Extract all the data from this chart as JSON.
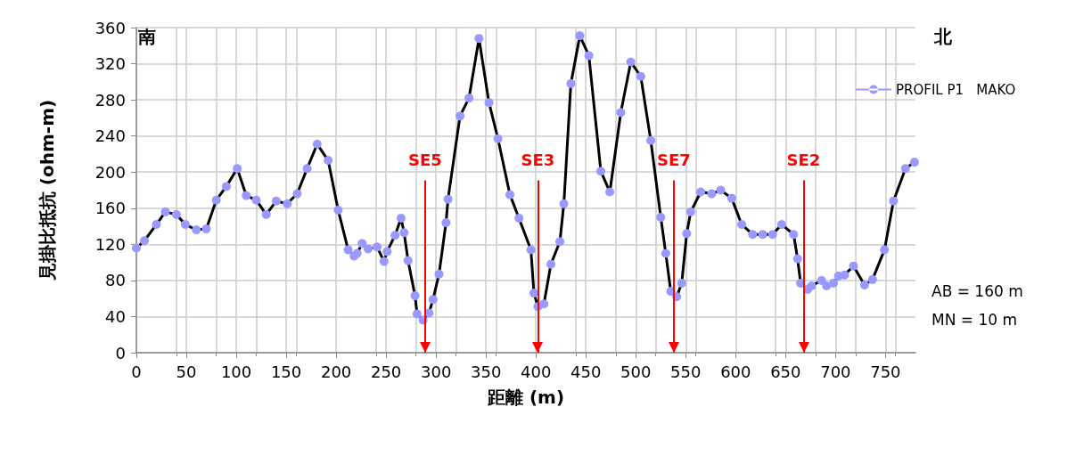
{
  "chart_data": {
    "type": "line",
    "xlabel": "距離 (m)",
    "ylabel": "見掛比抵抗 (ohm-m)",
    "xlim": [
      0,
      780
    ],
    "xticks": [
      0,
      50,
      100,
      150,
      200,
      250,
      300,
      350,
      400,
      450,
      500,
      550,
      600,
      650,
      700,
      750
    ],
    "ylim": [
      0,
      360
    ],
    "yticks": [
      0,
      40,
      80,
      120,
      160,
      200,
      240,
      280,
      320,
      360
    ],
    "grid": true,
    "legend": "top right",
    "marker": "circle",
    "line_style": "solid",
    "series": [
      {
        "name": "PROFIL P1   MAKO",
        "color": "#9999ff",
        "x": [
          0,
          8,
          20,
          29,
          40,
          49,
          60,
          70,
          80,
          90,
          101,
          110,
          120,
          130,
          140,
          151,
          161,
          171,
          181,
          192,
          202,
          212,
          218,
          221,
          226,
          232,
          241,
          248,
          251,
          259,
          265,
          268,
          272,
          279,
          281,
          287,
          293,
          297,
          303,
          310,
          312,
          324,
          333,
          343,
          353,
          362,
          374,
          383,
          395,
          398,
          402,
          408,
          415,
          424,
          428,
          435,
          444,
          453,
          465,
          474,
          485,
          495,
          505,
          515,
          525,
          530,
          535,
          541,
          546,
          551,
          555,
          565,
          576,
          585,
          596,
          606,
          617,
          627,
          637,
          646,
          658,
          662,
          665,
          672,
          676,
          686,
          691,
          698,
          703,
          709,
          718,
          729,
          737,
          749,
          758,
          770,
          779
        ],
        "values": [
          116,
          124,
          142,
          156,
          153,
          142,
          136,
          137,
          169,
          184,
          204,
          174,
          169,
          153,
          168,
          165,
          176,
          204,
          231,
          213,
          158,
          114,
          107,
          110,
          121,
          115,
          117,
          101,
          112,
          130,
          149,
          133,
          102,
          63,
          43,
          36,
          44,
          59,
          87,
          144,
          170,
          262,
          282,
          348,
          277,
          237,
          175,
          149,
          114,
          66,
          51,
          54,
          98,
          123,
          165,
          298,
          351,
          329,
          201,
          178,
          266,
          322,
          306,
          235,
          150,
          110,
          68,
          62,
          77,
          132,
          156,
          178,
          176,
          180,
          171,
          142,
          131,
          131,
          131,
          142,
          131,
          104,
          77,
          70,
          74,
          80,
          74,
          77,
          85,
          86,
          96,
          75,
          81,
          114,
          168,
          204,
          211
        ]
      }
    ],
    "annotations": [
      "南",
      "北",
      "AB = 160 m",
      "MN = 10 m"
    ],
    "ref_lines": [
      {
        "axis": "x",
        "value": 289,
        "label": "SE5",
        "color": "#ff0000"
      },
      {
        "axis": "x",
        "value": 402,
        "label": "SE3",
        "color": "#ff0000"
      },
      {
        "axis": "x",
        "value": 538,
        "label": "SE7",
        "color": "#ff0000"
      },
      {
        "axis": "x",
        "value": 668,
        "label": "SE2",
        "color": "#ff0000"
      }
    ]
  }
}
